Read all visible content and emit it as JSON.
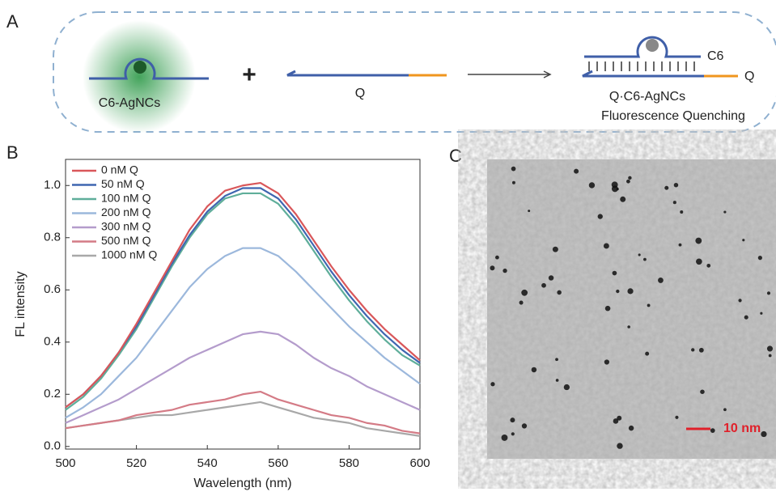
{
  "panel_labels": [
    "A",
    "B",
    "C"
  ],
  "scheme": {
    "left_label": "C6-AgNCs",
    "plus": "+",
    "middle_label": "Q",
    "right_strand_top": "C6",
    "right_strand_bottom": "Q",
    "right_label": "Q·C6-AgNCs",
    "right_caption": "Fluorescence Quenching"
  },
  "scale_bar": "10 nm",
  "chart_data": {
    "type": "line",
    "xlabel": "Wavelength (nm)",
    "ylabel": "FL intensity",
    "x": [
      500,
      505,
      510,
      515,
      520,
      525,
      530,
      535,
      540,
      545,
      550,
      555,
      560,
      565,
      570,
      575,
      580,
      585,
      590,
      595,
      600
    ],
    "xlim": [
      500,
      600
    ],
    "xticks": [
      500,
      520,
      540,
      560,
      580,
      600
    ],
    "ylim": [
      -0.01,
      1.1
    ],
    "yticks": [
      {
        "value": 0,
        "label": "0.0"
      },
      0.2,
      0.4,
      0.6,
      0.8,
      {
        "value": 1,
        "label": "1.0"
      }
    ],
    "legend": "upper left",
    "series": [
      {
        "name": "0 nM Q",
        "color": "#d9575a",
        "values": [
          0.15,
          0.2,
          0.27,
          0.36,
          0.47,
          0.59,
          0.71,
          0.83,
          0.92,
          0.98,
          1.0,
          1.01,
          0.97,
          0.89,
          0.79,
          0.69,
          0.6,
          0.52,
          0.45,
          0.39,
          0.33
        ]
      },
      {
        "name": "50 nM Q",
        "color": "#3f66b0",
        "values": [
          0.15,
          0.2,
          0.27,
          0.36,
          0.46,
          0.58,
          0.7,
          0.81,
          0.9,
          0.96,
          0.99,
          0.99,
          0.95,
          0.87,
          0.77,
          0.67,
          0.58,
          0.5,
          0.43,
          0.37,
          0.32
        ]
      },
      {
        "name": "100 nM Q",
        "color": "#5fae9a",
        "values": [
          0.14,
          0.19,
          0.26,
          0.35,
          0.45,
          0.57,
          0.69,
          0.8,
          0.89,
          0.95,
          0.97,
          0.97,
          0.93,
          0.85,
          0.75,
          0.65,
          0.56,
          0.48,
          0.41,
          0.35,
          0.31
        ]
      },
      {
        "name": "200 nM Q",
        "color": "#9cb8dc",
        "values": [
          0.11,
          0.15,
          0.2,
          0.27,
          0.34,
          0.43,
          0.52,
          0.61,
          0.68,
          0.73,
          0.76,
          0.76,
          0.73,
          0.67,
          0.6,
          0.53,
          0.46,
          0.4,
          0.34,
          0.29,
          0.24
        ]
      },
      {
        "name": "300 nM Q",
        "color": "#b49ccc",
        "values": [
          0.09,
          0.12,
          0.15,
          0.18,
          0.22,
          0.26,
          0.3,
          0.34,
          0.37,
          0.4,
          0.43,
          0.44,
          0.43,
          0.39,
          0.34,
          0.3,
          0.27,
          0.23,
          0.2,
          0.17,
          0.14
        ]
      },
      {
        "name": "500 nM Q",
        "color": "#d47b86",
        "values": [
          0.07,
          0.08,
          0.09,
          0.1,
          0.12,
          0.13,
          0.14,
          0.16,
          0.17,
          0.18,
          0.2,
          0.21,
          0.18,
          0.16,
          0.14,
          0.12,
          0.11,
          0.09,
          0.08,
          0.06,
          0.05
        ]
      },
      {
        "name": "1000 nM Q",
        "color": "#a8a8a8",
        "values": [
          0.07,
          0.08,
          0.09,
          0.1,
          0.11,
          0.12,
          0.12,
          0.13,
          0.14,
          0.15,
          0.16,
          0.17,
          0.15,
          0.13,
          0.11,
          0.1,
          0.09,
          0.07,
          0.06,
          0.05,
          0.04
        ]
      }
    ]
  }
}
